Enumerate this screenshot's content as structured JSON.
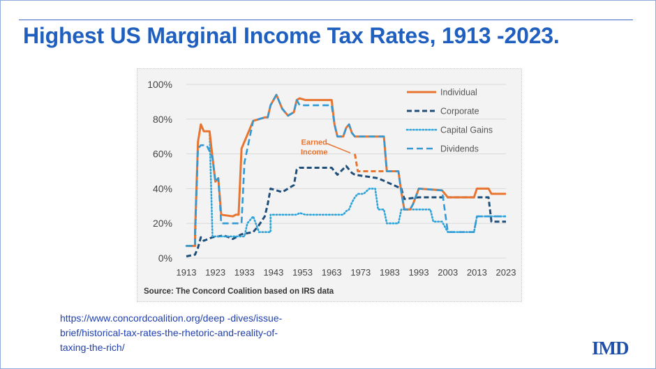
{
  "title": "Highest US Marginal Income Tax Rates, 1913 -2023.",
  "source_note": "Source: The Concord Coalition based on IRS data",
  "url_lines": [
    "https://www.concordcoalition.org/deep -dives/issue-",
    "brief/historical-tax-rates-the-rhetoric-and-reality-of-",
    "taxing-the-rich/"
  ],
  "logo_text": "IMD",
  "colors": {
    "title": "#1f5fbf",
    "individual": "#e8742f",
    "corporate": "#1f4e79",
    "capital_gains": "#2ea3d9",
    "dividends": "#2f9ad6",
    "link": "#1f3fb0"
  },
  "chart_data": {
    "type": "line",
    "title": "",
    "xlabel": "",
    "ylabel": "",
    "xlim": [
      1913,
      2023
    ],
    "ylim": [
      0,
      100
    ],
    "x_ticks": [
      "1913",
      "1923",
      "1933",
      "1943",
      "1953",
      "1963",
      "1973",
      "1983",
      "1993",
      "2003",
      "2013",
      "2023"
    ],
    "y_ticks": [
      "0%",
      "20%",
      "40%",
      "60%",
      "80%",
      "100%"
    ],
    "grid": "horizontal",
    "legend_position": "top-right",
    "annotation": {
      "text": [
        "Earned",
        "Income"
      ],
      "x": 1969,
      "y": 60
    },
    "series": [
      {
        "name": "Individual",
        "style": "solid",
        "points": [
          [
            1913,
            7
          ],
          [
            1916,
            7
          ],
          [
            1916,
            15
          ],
          [
            1917,
            67
          ],
          [
            1918,
            77
          ],
          [
            1919,
            73
          ],
          [
            1921,
            73
          ],
          [
            1922,
            58
          ],
          [
            1923,
            44
          ],
          [
            1924,
            46
          ],
          [
            1925,
            25
          ],
          [
            1929,
            24
          ],
          [
            1930,
            25
          ],
          [
            1931,
            25
          ],
          [
            1932,
            63
          ],
          [
            1936,
            79
          ],
          [
            1940,
            81
          ],
          [
            1941,
            81
          ],
          [
            1942,
            88
          ],
          [
            1944,
            94
          ],
          [
            1946,
            86
          ],
          [
            1948,
            82
          ],
          [
            1950,
            84
          ],
          [
            1951,
            91
          ],
          [
            1952,
            92
          ],
          [
            1954,
            91
          ],
          [
            1963,
            91
          ],
          [
            1964,
            77
          ],
          [
            1965,
            70
          ],
          [
            1967,
            70
          ],
          [
            1968,
            75
          ],
          [
            1969,
            77
          ],
          [
            1970,
            72
          ],
          [
            1971,
            70
          ],
          [
            1981,
            70
          ],
          [
            1982,
            50
          ],
          [
            1986,
            50
          ],
          [
            1987,
            38
          ],
          [
            1988,
            28
          ],
          [
            1990,
            28
          ],
          [
            1991,
            31
          ],
          [
            1993,
            40
          ],
          [
            2001,
            39
          ],
          [
            2003,
            35
          ],
          [
            2012,
            35
          ],
          [
            2013,
            40
          ],
          [
            2017,
            40
          ],
          [
            2018,
            37
          ],
          [
            2023,
            37
          ]
        ]
      },
      {
        "name": "Earned Income",
        "style": "dashed",
        "legend": false,
        "points": [
          [
            1971,
            60
          ],
          [
            1972,
            50
          ],
          [
            1981,
            50
          ]
        ]
      },
      {
        "name": "Corporate",
        "style": "dashed",
        "points": [
          [
            1913,
            1
          ],
          [
            1916,
            2
          ],
          [
            1917,
            6
          ],
          [
            1918,
            12
          ],
          [
            1919,
            10
          ],
          [
            1922,
            12
          ],
          [
            1926,
            13
          ],
          [
            1929,
            11
          ],
          [
            1932,
            13.75
          ],
          [
            1936,
            15
          ],
          [
            1938,
            19
          ],
          [
            1940,
            24
          ],
          [
            1941,
            31
          ],
          [
            1942,
            40
          ],
          [
            1946,
            38
          ],
          [
            1950,
            42
          ],
          [
            1951,
            51
          ],
          [
            1952,
            52
          ],
          [
            1963,
            52
          ],
          [
            1964,
            50
          ],
          [
            1965,
            48
          ],
          [
            1968,
            53
          ],
          [
            1970,
            49
          ],
          [
            1971,
            48
          ],
          [
            1979,
            46
          ],
          [
            1987,
            40
          ],
          [
            1988,
            34
          ],
          [
            1993,
            35
          ],
          [
            2017,
            35
          ],
          [
            2018,
            21
          ],
          [
            2023,
            21
          ]
        ]
      },
      {
        "name": "Capital Gains",
        "style": "dotted",
        "points": [
          [
            1913,
            7
          ],
          [
            1916,
            7
          ],
          [
            1917,
            67
          ],
          [
            1918,
            77
          ],
          [
            1919,
            73
          ],
          [
            1921,
            73
          ],
          [
            1922,
            12.5
          ],
          [
            1933,
            12.5
          ],
          [
            1934,
            20
          ],
          [
            1936,
            24
          ],
          [
            1938,
            15
          ],
          [
            1942,
            15
          ],
          [
            1942,
            25
          ],
          [
            1951,
            25
          ],
          [
            1952,
            26
          ],
          [
            1954,
            25
          ],
          [
            1967,
            25
          ],
          [
            1968,
            27
          ],
          [
            1969,
            28
          ],
          [
            1970,
            32
          ],
          [
            1971,
            35
          ],
          [
            1972,
            37
          ],
          [
            1974,
            37
          ],
          [
            1976,
            40
          ],
          [
            1978,
            40
          ],
          [
            1979,
            28
          ],
          [
            1981,
            28
          ],
          [
            1982,
            20
          ],
          [
            1986,
            20
          ],
          [
            1987,
            28
          ],
          [
            1988,
            28
          ],
          [
            1991,
            28
          ],
          [
            1997,
            28
          ],
          [
            1998,
            21
          ],
          [
            2001,
            21
          ],
          [
            2003,
            15
          ],
          [
            2012,
            15
          ],
          [
            2013,
            24
          ],
          [
            2023,
            24
          ]
        ]
      },
      {
        "name": "Dividends",
        "style": "dashed",
        "points": [
          [
            1913,
            7
          ],
          [
            1916,
            7
          ],
          [
            1916,
            15
          ],
          [
            1917,
            63
          ],
          [
            1918,
            65
          ],
          [
            1920,
            65
          ],
          [
            1922,
            58
          ],
          [
            1923,
            44
          ],
          [
            1924,
            46
          ],
          [
            1925,
            20
          ],
          [
            1932,
            20
          ],
          [
            1933,
            55
          ],
          [
            1936,
            79
          ],
          [
            1940,
            81
          ],
          [
            1941,
            81
          ],
          [
            1942,
            88
          ],
          [
            1944,
            94
          ],
          [
            1946,
            86
          ],
          [
            1948,
            82
          ],
          [
            1950,
            84
          ],
          [
            1951,
            91
          ],
          [
            1952,
            88
          ],
          [
            1963,
            88
          ],
          [
            1964,
            77
          ],
          [
            1965,
            70
          ],
          [
            1967,
            70
          ],
          [
            1968,
            75
          ],
          [
            1969,
            77
          ],
          [
            1970,
            72
          ],
          [
            1971,
            70
          ],
          [
            1981,
            70
          ],
          [
            1982,
            50
          ],
          [
            1986,
            50
          ],
          [
            1987,
            38
          ],
          [
            1988,
            28
          ],
          [
            1990,
            28
          ],
          [
            1991,
            31
          ],
          [
            1993,
            40
          ],
          [
            2001,
            39
          ],
          [
            2003,
            15
          ],
          [
            2012,
            15
          ],
          [
            2013,
            24
          ],
          [
            2023,
            24
          ]
        ]
      }
    ]
  }
}
